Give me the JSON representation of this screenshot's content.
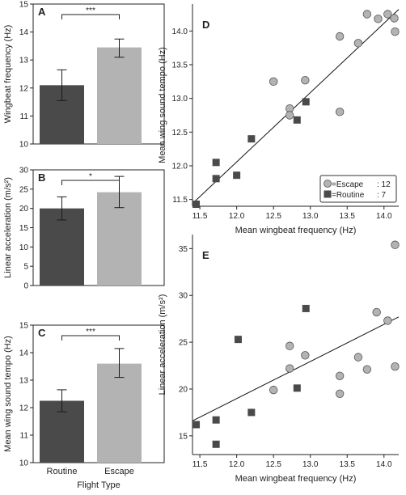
{
  "colors": {
    "routine": "#4a4a4a",
    "escape": "#b3b3b3",
    "axis": "#222222",
    "marker_stroke": "#555555"
  },
  "chart_data": [
    {
      "panel": "A",
      "type": "bar",
      "categories": [
        "Routine",
        "Escape"
      ],
      "values": [
        12.1,
        13.45
      ],
      "error": [
        [
          11.55,
          12.65
        ],
        [
          13.1,
          13.75
        ]
      ],
      "ylabel": "Wingbeat frequency (Hz)",
      "xlabel": "",
      "ylim": [
        10,
        15
      ],
      "yticks": [
        "10",
        "11",
        "12",
        "13",
        "14",
        "15"
      ],
      "significance": "***",
      "show_xticks": false
    },
    {
      "panel": "B",
      "type": "bar",
      "categories": [
        "Routine",
        "Escape"
      ],
      "values": [
        20.0,
        24.2
      ],
      "error": [
        [
          17.0,
          23.0
        ],
        [
          20.2,
          28.3
        ]
      ],
      "ylabel": "Linear acceleration (m/s²)",
      "xlabel": "",
      "ylim": [
        0,
        30
      ],
      "yticks": [
        "0",
        "5",
        "10",
        "15",
        "20",
        "25",
        "30"
      ],
      "significance": "*",
      "show_xticks": false
    },
    {
      "panel": "C",
      "type": "bar",
      "categories": [
        "Routine",
        "Escape"
      ],
      "values": [
        12.25,
        13.6
      ],
      "error": [
        [
          11.85,
          12.65
        ],
        [
          13.1,
          14.15
        ]
      ],
      "ylabel": "Mean wing sound tempo (Hz)",
      "xlabel": "Flight Type",
      "ylim": [
        10,
        15
      ],
      "yticks": [
        "10",
        "11",
        "12",
        "13",
        "14",
        "15"
      ],
      "significance": "***",
      "show_xticks": true
    },
    {
      "panel": "D",
      "type": "scatter",
      "xlabel": "Mean wingbeat frequency (Hz)",
      "ylabel": "Mean wing sound tempo (Hz)",
      "xlim": [
        11.4,
        14.2
      ],
      "ylim": [
        11.4,
        14.4
      ],
      "xticks": [
        "11.5",
        "12.0",
        "12.5",
        "13.0",
        "13.5",
        "14.0"
      ],
      "yticks": [
        "11.5",
        "12.0",
        "12.5",
        "13.0",
        "13.5",
        "14.0"
      ],
      "legend": {
        "placement": "bottom-right",
        "entries": [
          {
            "symbol": "circle",
            "label": "=Escape",
            "count": ": 12"
          },
          {
            "symbol": "square",
            "label": "=Routine",
            "count": ":  7"
          }
        ]
      },
      "trendline": [
        [
          11.4,
          11.44
        ],
        [
          14.2,
          14.32
        ]
      ],
      "series": [
        {
          "marker": "circle",
          "points": [
            [
              12.5,
              13.25
            ],
            [
              12.72,
              12.85
            ],
            [
              12.72,
              12.75
            ],
            [
              12.93,
              13.27
            ],
            [
              13.4,
              13.92
            ],
            [
              13.4,
              12.8
            ],
            [
              13.65,
              13.82
            ],
            [
              13.77,
              14.25
            ],
            [
              13.92,
              14.18
            ],
            [
              14.05,
              14.25
            ],
            [
              14.14,
              14.19
            ],
            [
              14.15,
              13.99
            ]
          ]
        },
        {
          "marker": "square",
          "points": [
            [
              11.45,
              11.43
            ],
            [
              11.72,
              12.05
            ],
            [
              11.72,
              11.81
            ],
            [
              12.0,
              11.86
            ],
            [
              12.2,
              12.4
            ],
            [
              12.82,
              12.68
            ],
            [
              12.94,
              12.95
            ]
          ]
        }
      ]
    },
    {
      "panel": "E",
      "type": "scatter",
      "xlabel": "Mean wingbeat frequency (Hz)",
      "ylabel": "Linear acceleration (m/s²)",
      "xlim": [
        11.4,
        14.2
      ],
      "ylim": [
        13,
        36.5
      ],
      "xticks": [
        "11.5",
        "12.0",
        "12.5",
        "13.0",
        "13.5",
        "14.0"
      ],
      "yticks": [
        "15",
        "20",
        "25",
        "30",
        "35"
      ],
      "trendline": [
        [
          11.4,
          16.6
        ],
        [
          14.2,
          27.7
        ]
      ],
      "series": [
        {
          "marker": "circle",
          "points": [
            [
              12.5,
              19.9
            ],
            [
              12.72,
              24.6
            ],
            [
              12.72,
              22.2
            ],
            [
              12.93,
              23.6
            ],
            [
              13.4,
              21.4
            ],
            [
              13.4,
              19.5
            ],
            [
              13.65,
              23.4
            ],
            [
              13.77,
              22.1
            ],
            [
              13.9,
              28.2
            ],
            [
              14.05,
              27.3
            ],
            [
              14.15,
              22.4
            ],
            [
              14.15,
              35.4
            ]
          ]
        },
        {
          "marker": "square",
          "points": [
            [
              11.45,
              16.2
            ],
            [
              11.72,
              16.7
            ],
            [
              11.72,
              14.1
            ],
            [
              12.02,
              25.3
            ],
            [
              12.2,
              17.5
            ],
            [
              12.82,
              20.1
            ],
            [
              12.94,
              28.6
            ]
          ]
        }
      ]
    }
  ]
}
